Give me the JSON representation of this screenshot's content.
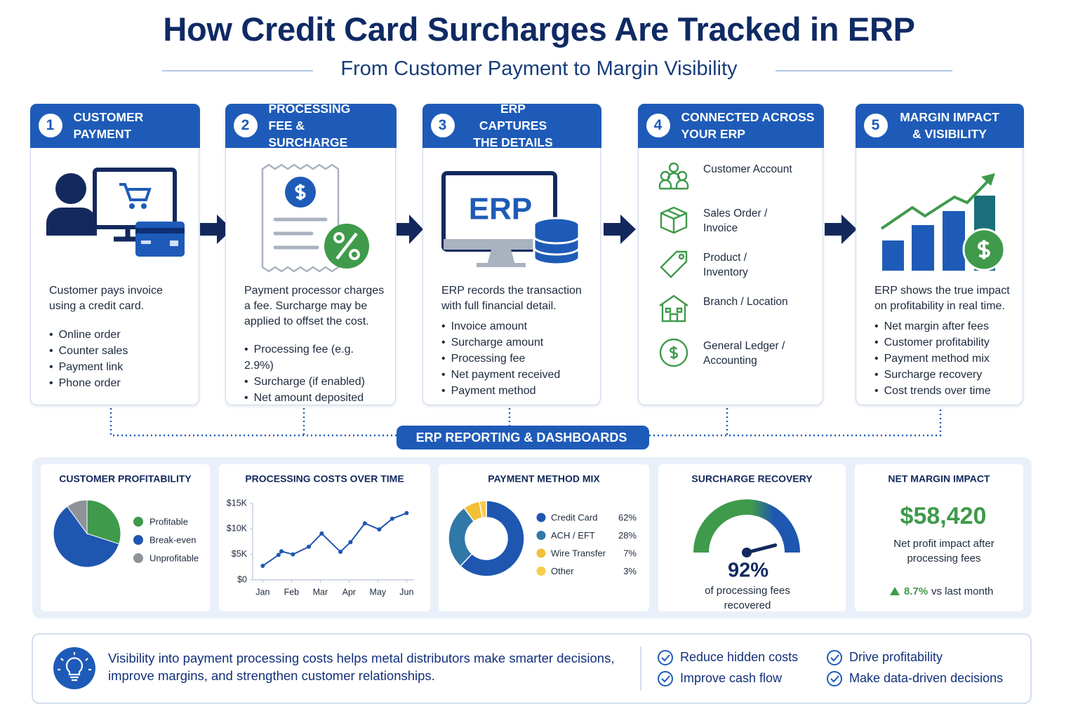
{
  "title": "How Credit Card Surcharges Are Tracked in ERP",
  "subtitle": "From Customer Payment to Margin Visibility",
  "steps": [
    {
      "number": 1,
      "title": "CUSTOMER PAYMENT",
      "description": "Customer pays invoice using a credit card.",
      "bullets": [
        "Online order",
        "Counter sales",
        "Payment link",
        "Phone order"
      ]
    },
    {
      "number": 2,
      "title": "PROCESSING FEE & SURCHARGE",
      "description": "Payment processor charges a fee. Surcharge may be applied to offset the cost.",
      "bullets": [
        "Processing fee (e.g. 2.9%)",
        "Surcharge (if enabled)",
        "Net amount deposited"
      ]
    },
    {
      "number": 3,
      "title": "ERP CAPTURES THE DETAILS",
      "icon_label": "ERP",
      "description": "ERP records the transaction with full financial detail.",
      "bullets": [
        "Invoice amount",
        "Surcharge amount",
        "Processing fee",
        "Net payment received",
        "Payment method"
      ]
    },
    {
      "number": 4,
      "title": "CONNECTED ACROSS YOUR ERP",
      "items": [
        "Customer Account",
        "Sales Order / Invoice",
        "Product / Inventory",
        "Branch / Location",
        "General Ledger / Accounting"
      ]
    },
    {
      "number": 5,
      "title": "MARGIN IMPACT & VISIBILITY",
      "description": "ERP shows the true impact on profitability in real time.",
      "bullets": [
        "Net margin after fees",
        "Customer profitability",
        "Payment method mix",
        "Surcharge recovery",
        "Cost trends over time"
      ]
    }
  ],
  "reporting_label": "ERP REPORTING & DASHBOARDS",
  "panels": [
    {
      "type": "pie",
      "title": "CUSTOMER PROFITABILITY",
      "categories": [
        "Profitable",
        "Break-even",
        "Unprofitable"
      ],
      "values": [
        30,
        60,
        10
      ],
      "colors": [
        "#3f9a4b",
        "#1f56b0",
        "#8e9299"
      ]
    },
    {
      "type": "line",
      "title": "PROCESSING COSTS OVER TIME",
      "x": [
        0,
        0.55,
        0.65,
        1.05,
        1.6,
        2.05,
        2.7,
        3.05,
        3.55,
        4.05,
        4.5,
        5
      ],
      "values": [
        2750,
        4900,
        5600,
        5000,
        6500,
        9100,
        5500,
        7400,
        11100,
        9900,
        12000,
        13100
      ],
      "color": "#1f56b0",
      "xlim": [
        -0.35,
        5.25
      ],
      "xticks": [
        {
          "value": 0,
          "label": "Jan"
        },
        {
          "value": 1,
          "label": "Feb"
        },
        {
          "value": 2,
          "label": "Mar"
        },
        {
          "value": 3,
          "label": "Apr"
        },
        {
          "value": 4,
          "label": "May"
        },
        {
          "value": 5,
          "label": "Jun"
        }
      ],
      "ylim": [
        0,
        15000
      ],
      "yticks": [
        {
          "value": 0,
          "label": "$0"
        },
        {
          "value": 5000,
          "label": "$5K"
        },
        {
          "value": 10000,
          "label": "$10K"
        },
        {
          "value": 15000,
          "label": "$15K"
        }
      ],
      "grid": false
    },
    {
      "type": "donut",
      "title": "PAYMENT METHOD MIX",
      "categories": [
        "Credit Card",
        "ACH / EFT",
        "Wire Transfer",
        "Other"
      ],
      "values": [
        62,
        28,
        7,
        3
      ],
      "value_labels": [
        "62%",
        "28%",
        "7%",
        "3%"
      ],
      "colors": [
        "#1f56b0",
        "#2f78a8",
        "#f2c037",
        "#f7cc4a"
      ]
    },
    {
      "type": "gauge",
      "title": "SURCHARGE RECOVERY",
      "value": 92,
      "value_label": "92%",
      "lim": [
        0,
        100
      ],
      "caption": "of processing fees recovered"
    },
    {
      "type": "kpi",
      "title": "NET MARGIN IMPACT",
      "value": 58420,
      "value_label": "$58,420",
      "caption": "Net profit impact after processing fees",
      "change": 8.7,
      "change_label": "8.7%",
      "change_text": "vs last month"
    }
  ],
  "footer": {
    "message": "Visibility into payment processing costs helps metal distributors make smarter decisions, improve margins, and strengthen customer relationships.",
    "benefits": [
      "Reduce hidden costs",
      "Drive profitability",
      "Improve cash flow",
      "Make data-driven decisions"
    ]
  }
}
